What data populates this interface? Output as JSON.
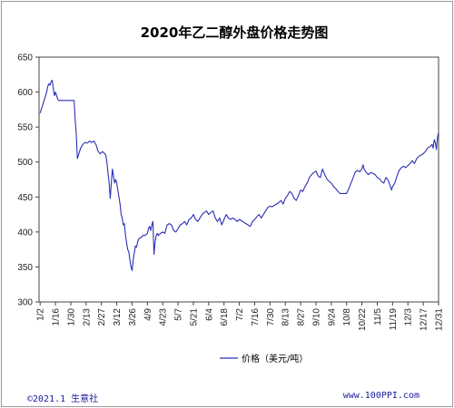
{
  "footer": {
    "left": "©2021.1 生意社",
    "right": "www.100PPI.com"
  },
  "chart_data": {
    "type": "line",
    "title": "2020年乙二醇外盘价格走势图",
    "xlabel": "",
    "ylabel": "",
    "ylim": [
      300,
      650
    ],
    "yticks": [
      300,
      350,
      400,
      450,
      500,
      550,
      600,
      650
    ],
    "xlim": [
      1,
      366
    ],
    "xticks": [
      {
        "label": "1/2",
        "day": 2
      },
      {
        "label": "1/16",
        "day": 16
      },
      {
        "label": "1/30",
        "day": 30
      },
      {
        "label": "2/13",
        "day": 44
      },
      {
        "label": "2/27",
        "day": 58
      },
      {
        "label": "3/12",
        "day": 72
      },
      {
        "label": "3/26",
        "day": 86
      },
      {
        "label": "4/9",
        "day": 100
      },
      {
        "label": "4/23",
        "day": 114
      },
      {
        "label": "5/7",
        "day": 128
      },
      {
        "label": "5/21",
        "day": 142
      },
      {
        "label": "6/4",
        "day": 156
      },
      {
        "label": "6/18",
        "day": 170
      },
      {
        "label": "7/2",
        "day": 184
      },
      {
        "label": "7/16",
        "day": 198
      },
      {
        "label": "7/30",
        "day": 212
      },
      {
        "label": "8/13",
        "day": 226
      },
      {
        "label": "8/27",
        "day": 240
      },
      {
        "label": "9/10",
        "day": 254
      },
      {
        "label": "9/24",
        "day": 268
      },
      {
        "label": "10/8",
        "day": 282
      },
      {
        "label": "10/22",
        "day": 296
      },
      {
        "label": "11/5",
        "day": 310
      },
      {
        "label": "11/19",
        "day": 324
      },
      {
        "label": "12/3",
        "day": 338
      },
      {
        "label": "12/17",
        "day": 352
      },
      {
        "label": "12/31",
        "day": 366
      }
    ],
    "grid": false,
    "legend_position": "bottom",
    "colors": {
      "line": "#2b2fb5",
      "axis": "#444444"
    },
    "series": [
      {
        "name": "价格（美元/吨）",
        "points": [
          [
            2,
            570
          ],
          [
            4,
            580
          ],
          [
            6,
            590
          ],
          [
            8,
            600
          ],
          [
            9,
            608
          ],
          [
            10,
            612
          ],
          [
            11,
            610
          ],
          [
            12,
            615
          ],
          [
            13,
            617
          ],
          [
            14,
            605
          ],
          [
            15,
            595
          ],
          [
            16,
            600
          ],
          [
            17,
            595
          ],
          [
            18,
            590
          ],
          [
            19,
            588
          ],
          [
            22,
            588
          ],
          [
            25,
            588
          ],
          [
            28,
            588
          ],
          [
            31,
            588
          ],
          [
            33,
            588
          ],
          [
            34,
            560
          ],
          [
            35,
            540
          ],
          [
            36,
            505
          ],
          [
            37,
            510
          ],
          [
            39,
            520
          ],
          [
            41,
            525
          ],
          [
            43,
            528
          ],
          [
            45,
            527
          ],
          [
            47,
            530
          ],
          [
            49,
            528
          ],
          [
            51,
            530
          ],
          [
            53,
            525
          ],
          [
            54,
            520
          ],
          [
            55,
            515
          ],
          [
            57,
            512
          ],
          [
            59,
            515
          ],
          [
            61,
            512
          ],
          [
            62,
            510
          ],
          [
            63,
            500
          ],
          [
            64,
            485
          ],
          [
            65,
            470
          ],
          [
            66,
            448
          ],
          [
            67,
            470
          ],
          [
            68,
            490
          ],
          [
            69,
            480
          ],
          [
            70,
            470
          ],
          [
            71,
            475
          ],
          [
            72,
            470
          ],
          [
            73,
            460
          ],
          [
            74,
            450
          ],
          [
            75,
            440
          ],
          [
            76,
            425
          ],
          [
            77,
            420
          ],
          [
            78,
            410
          ],
          [
            79,
            412
          ],
          [
            80,
            395
          ],
          [
            81,
            385
          ],
          [
            82,
            375
          ],
          [
            83,
            372
          ],
          [
            84,
            360
          ],
          [
            85,
            350
          ],
          [
            86,
            345
          ],
          [
            87,
            360
          ],
          [
            88,
            370
          ],
          [
            89,
            380
          ],
          [
            90,
            378
          ],
          [
            91,
            385
          ],
          [
            92,
            390
          ],
          [
            94,
            392
          ],
          [
            96,
            395
          ],
          [
            98,
            395
          ],
          [
            100,
            398
          ],
          [
            101,
            405
          ],
          [
            102,
            408
          ],
          [
            103,
            402
          ],
          [
            104,
            410
          ],
          [
            105,
            415
          ],
          [
            106,
            368
          ],
          [
            107,
            385
          ],
          [
            108,
            395
          ],
          [
            109,
            398
          ],
          [
            110,
            395
          ],
          [
            112,
            398
          ],
          [
            114,
            400
          ],
          [
            116,
            398
          ],
          [
            118,
            410
          ],
          [
            120,
            412
          ],
          [
            122,
            410
          ],
          [
            124,
            402
          ],
          [
            126,
            400
          ],
          [
            128,
            405
          ],
          [
            130,
            410
          ],
          [
            132,
            412
          ],
          [
            134,
            415
          ],
          [
            136,
            410
          ],
          [
            138,
            418
          ],
          [
            140,
            420
          ],
          [
            142,
            425
          ],
          [
            144,
            418
          ],
          [
            146,
            415
          ],
          [
            148,
            420
          ],
          [
            150,
            425
          ],
          [
            152,
            428
          ],
          [
            154,
            430
          ],
          [
            156,
            425
          ],
          [
            158,
            428
          ],
          [
            160,
            430
          ],
          [
            162,
            420
          ],
          [
            164,
            415
          ],
          [
            166,
            420
          ],
          [
            168,
            410
          ],
          [
            170,
            418
          ],
          [
            172,
            425
          ],
          [
            174,
            420
          ],
          [
            176,
            418
          ],
          [
            178,
            420
          ],
          [
            180,
            418
          ],
          [
            182,
            415
          ],
          [
            184,
            418
          ],
          [
            186,
            416
          ],
          [
            188,
            414
          ],
          [
            190,
            412
          ],
          [
            192,
            410
          ],
          [
            194,
            408
          ],
          [
            196,
            415
          ],
          [
            198,
            418
          ],
          [
            200,
            422
          ],
          [
            202,
            425
          ],
          [
            204,
            420
          ],
          [
            206,
            425
          ],
          [
            208,
            430
          ],
          [
            210,
            435
          ],
          [
            212,
            437
          ],
          [
            214,
            436
          ],
          [
            216,
            438
          ],
          [
            218,
            440
          ],
          [
            220,
            442
          ],
          [
            222,
            445
          ],
          [
            224,
            440
          ],
          [
            226,
            448
          ],
          [
            228,
            452
          ],
          [
            230,
            458
          ],
          [
            232,
            455
          ],
          [
            234,
            448
          ],
          [
            236,
            445
          ],
          [
            238,
            452
          ],
          [
            240,
            460
          ],
          [
            242,
            458
          ],
          [
            244,
            465
          ],
          [
            246,
            470
          ],
          [
            248,
            478
          ],
          [
            250,
            482
          ],
          [
            252,
            485
          ],
          [
            254,
            487
          ],
          [
            256,
            480
          ],
          [
            258,
            478
          ],
          [
            260,
            490
          ],
          [
            262,
            482
          ],
          [
            264,
            476
          ],
          [
            266,
            472
          ],
          [
            268,
            470
          ],
          [
            270,
            465
          ],
          [
            272,
            462
          ],
          [
            274,
            458
          ],
          [
            276,
            455
          ],
          [
            278,
            455
          ],
          [
            280,
            455
          ],
          [
            282,
            455
          ],
          [
            284,
            462
          ],
          [
            286,
            470
          ],
          [
            288,
            478
          ],
          [
            290,
            486
          ],
          [
            292,
            488
          ],
          [
            294,
            486
          ],
          [
            296,
            490
          ],
          [
            297,
            496
          ],
          [
            298,
            490
          ],
          [
            300,
            485
          ],
          [
            302,
            482
          ],
          [
            304,
            485
          ],
          [
            306,
            484
          ],
          [
            308,
            482
          ],
          [
            310,
            478
          ],
          [
            312,
            476
          ],
          [
            314,
            472
          ],
          [
            316,
            470
          ],
          [
            318,
            478
          ],
          [
            320,
            474
          ],
          [
            322,
            465
          ],
          [
            323,
            460
          ],
          [
            324,
            465
          ],
          [
            326,
            470
          ],
          [
            328,
            480
          ],
          [
            330,
            488
          ],
          [
            332,
            492
          ],
          [
            334,
            494
          ],
          [
            336,
            492
          ],
          [
            338,
            495
          ],
          [
            340,
            498
          ],
          [
            342,
            502
          ],
          [
            344,
            498
          ],
          [
            346,
            505
          ],
          [
            348,
            508
          ],
          [
            350,
            510
          ],
          [
            352,
            512
          ],
          [
            354,
            515
          ],
          [
            356,
            520
          ],
          [
            358,
            522
          ],
          [
            360,
            525
          ],
          [
            361,
            520
          ],
          [
            362,
            532
          ],
          [
            363,
            528
          ],
          [
            364,
            518
          ],
          [
            365,
            535
          ],
          [
            366,
            542
          ]
        ]
      }
    ]
  }
}
